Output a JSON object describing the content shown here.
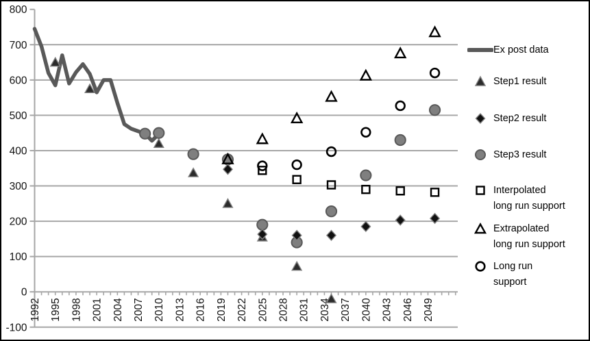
{
  "legend": {
    "items": [
      {
        "label": "Ex post data",
        "marker": "line-swatch"
      },
      {
        "label": "Step1 result",
        "marker": "filled-triangle"
      },
      {
        "label": "Step2 result",
        "marker": "filled-diamond"
      },
      {
        "label": "Step3 result",
        "marker": "filled-circle"
      },
      {
        "label": "Interpolated\nlong run support",
        "marker": "open-square"
      },
      {
        "label": "Extrapolated\nlong run support",
        "marker": "open-triangle"
      },
      {
        "label": "Long run\nsupport",
        "marker": "open-circle"
      }
    ]
  },
  "colors": {
    "line": "#595959",
    "gridline": "#a6a6a6",
    "axis": "#a6a6a6",
    "tick_label": "#111111",
    "filled_triangle_fill": "#2b2b2b",
    "filled_triangle_stroke": "#7f7f7f",
    "filled_diamond_fill": "#111111",
    "filled_diamond_stroke": "#7f7f7f",
    "filled_circle_fill": "#7f7f7f",
    "filled_circle_stroke": "#595959",
    "open_marker_stroke": "#000000"
  },
  "chart_data": {
    "type": "line",
    "title": "",
    "xlabel": "",
    "ylabel": "",
    "x_axis": {
      "tick_labels": [
        1992,
        1995,
        1998,
        2001,
        2004,
        2007,
        2010,
        2013,
        2016,
        2019,
        2022,
        2025,
        2028,
        2031,
        2034,
        2037,
        2040,
        2043,
        2046,
        2049
      ],
      "range": [
        1992,
        2053
      ],
      "minor_tick_every_year": true
    },
    "y_axis": {
      "tick_labels": [
        800,
        700,
        600,
        500,
        400,
        300,
        200,
        100,
        0,
        -100
      ],
      "range": [
        -100,
        800
      ],
      "gridlines": [
        -100,
        100,
        200,
        300,
        400,
        500,
        600,
        700
      ]
    },
    "series": [
      {
        "name": "Ex post data",
        "kind": "line",
        "x": [
          1992,
          1993,
          1994,
          1995,
          1996,
          1997,
          1998,
          1999,
          2000,
          2001,
          2002,
          2003,
          2004,
          2005,
          2006,
          2007,
          2008,
          2009,
          2010
        ],
        "y": [
          745,
          695,
          620,
          585,
          670,
          590,
          622,
          645,
          617,
          565,
          600,
          600,
          535,
          475,
          462,
          455,
          448,
          428,
          447
        ]
      },
      {
        "name": "Step1 result",
        "kind": "scatter",
        "marker": "filled-triangle",
        "x": [
          1995,
          2000,
          2010,
          2015,
          2020,
          2025,
          2030,
          2035
        ],
        "y": [
          650,
          575,
          420,
          337,
          250,
          155,
          72,
          -20
        ]
      },
      {
        "name": "Step3 result",
        "kind": "scatter",
        "marker": "filled-circle",
        "x": [
          2008,
          2010,
          2015,
          2020,
          2025,
          2030,
          2035,
          2040,
          2045,
          2050
        ],
        "y": [
          448,
          450,
          390,
          375,
          190,
          140,
          228,
          330,
          430,
          515
        ]
      },
      {
        "name": "Step2 result",
        "kind": "scatter",
        "marker": "filled-diamond",
        "x": [
          2020,
          2025,
          2030,
          2035,
          2040,
          2045,
          2050
        ],
        "y": [
          347,
          163,
          160,
          160,
          185,
          203,
          208
        ]
      },
      {
        "name": "Interpolated long run support",
        "kind": "scatter",
        "marker": "open-square",
        "x": [
          2025,
          2030,
          2035,
          2040,
          2045,
          2050
        ],
        "y": [
          344,
          318,
          303,
          290,
          286,
          282
        ]
      },
      {
        "name": "Extrapolated long run support",
        "kind": "scatter",
        "marker": "open-triangle",
        "x": [
          2020,
          2025,
          2030,
          2035,
          2040,
          2045,
          2050
        ],
        "y": [
          375,
          432,
          491,
          552,
          612,
          675,
          735
        ]
      },
      {
        "name": "Long run support",
        "kind": "scatter",
        "marker": "open-circle",
        "x": [
          2025,
          2030,
          2035,
          2040,
          2045,
          2050
        ],
        "y": [
          357,
          360,
          397,
          452,
          527,
          620
        ]
      }
    ]
  }
}
